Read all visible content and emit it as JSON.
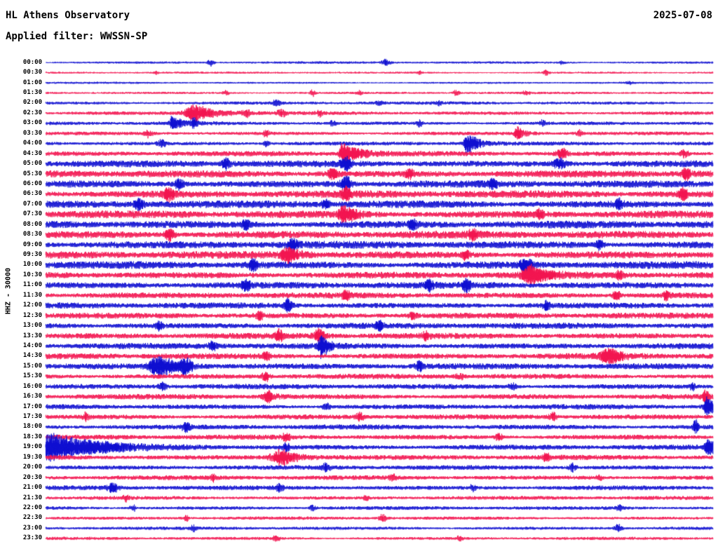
{
  "header": {
    "title": "HL Athens Observatory",
    "date": "2025-07-08",
    "filter_label": "Applied filter: WWSSN-SP"
  },
  "y_axis_label": "HHZ - 30000",
  "chart_data": {
    "type": "line",
    "subtype": "helicorder",
    "title": "HL Athens Observatory",
    "date": "2025-07-08",
    "filter": "WWSSN-SP",
    "channel": "HHZ",
    "scale": 30000,
    "minutes_per_row": 30,
    "legend": "none",
    "grid": false,
    "trace_colors": [
      "#0c0cd0",
      "#f3134f"
    ],
    "label_color": "#000000",
    "rows": [
      {
        "label": "00:00",
        "c": 0,
        "noise": 1.2,
        "ev": [
          {
            "x": 0.247,
            "a": 4,
            "w": 3
          },
          {
            "x": 0.51,
            "a": 4,
            "w": 4
          },
          {
            "x": 0.774,
            "a": 2,
            "w": 3
          }
        ]
      },
      {
        "label": "00:30",
        "c": 1,
        "noise": 1.0,
        "ev": [
          {
            "x": 0.165,
            "a": 2,
            "w": 2
          },
          {
            "x": 0.56,
            "a": 2,
            "w": 2
          },
          {
            "x": 0.75,
            "a": 2.5,
            "w": 3
          }
        ]
      },
      {
        "label": "01:00",
        "c": 0,
        "noise": 1.0,
        "ev": [
          {
            "x": 0.875,
            "a": 2,
            "w": 3
          }
        ]
      },
      {
        "label": "01:30",
        "c": 1,
        "noise": 1.2,
        "ev": [
          {
            "x": 0.27,
            "a": 3,
            "w": 3
          },
          {
            "x": 0.4,
            "a": 3.5,
            "w": 3
          },
          {
            "x": 0.47,
            "a": 2.5,
            "w": 3
          },
          {
            "x": 0.615,
            "a": 3,
            "w": 3
          },
          {
            "x": 0.72,
            "a": 2.5,
            "w": 3
          }
        ]
      },
      {
        "label": "02:00",
        "c": 0,
        "noise": 1.6,
        "ev": [
          {
            "x": 0.345,
            "a": 3.5,
            "w": 4
          },
          {
            "x": 0.5,
            "a": 2.5,
            "w": 3
          },
          {
            "x": 0.59,
            "a": 2.5,
            "w": 3
          }
        ]
      },
      {
        "label": "02:30",
        "c": 1,
        "noise": 1.8,
        "ev": [
          {
            "x": 0.223,
            "a": 9,
            "w": 9,
            "t": 30
          },
          {
            "x": 0.3,
            "a": 4,
            "w": 4
          },
          {
            "x": 0.353,
            "a": 4,
            "w": 4
          },
          {
            "x": 0.41,
            "a": 3,
            "w": 3
          }
        ]
      },
      {
        "label": "03:00",
        "c": 0,
        "noise": 1.8,
        "ev": [
          {
            "x": 0.19,
            "a": 7,
            "w": 3,
            "t": 15
          },
          {
            "x": 0.223,
            "a": 5,
            "w": 3
          },
          {
            "x": 0.43,
            "a": 3,
            "w": 3
          },
          {
            "x": 0.56,
            "a": 3,
            "w": 3
          },
          {
            "x": 0.745,
            "a": 3,
            "w": 3
          }
        ]
      },
      {
        "label": "03:30",
        "c": 1,
        "noise": 1.8,
        "ev": [
          {
            "x": 0.153,
            "a": 4,
            "w": 4
          },
          {
            "x": 0.33,
            "a": 4,
            "w": 3
          },
          {
            "x": 0.707,
            "a": 7,
            "w": 3,
            "t": 10
          },
          {
            "x": 0.8,
            "a": 3,
            "w": 3
          }
        ]
      },
      {
        "label": "04:00",
        "c": 0,
        "noise": 2.0,
        "ev": [
          {
            "x": 0.174,
            "a": 4,
            "w": 4
          },
          {
            "x": 0.33,
            "a": 4,
            "w": 3
          },
          {
            "x": 0.632,
            "a": 14,
            "w": 3,
            "t": 12
          }
        ]
      },
      {
        "label": "04:30",
        "c": 1,
        "noise": 2.6,
        "ev": [
          {
            "x": 0.447,
            "a": 12,
            "w": 4,
            "t": 20
          },
          {
            "x": 0.774,
            "a": 5,
            "w": 5
          },
          {
            "x": 0.958,
            "a": 4,
            "w": 4
          }
        ]
      },
      {
        "label": "05:00",
        "c": 0,
        "noise": 3.4,
        "ev": [
          {
            "x": 0.27,
            "a": 5,
            "w": 5
          },
          {
            "x": 0.45,
            "a": 6,
            "w": 5
          },
          {
            "x": 0.77,
            "a": 5,
            "w": 6
          }
        ]
      },
      {
        "label": "05:30",
        "c": 1,
        "noise": 3.6,
        "ev": [
          {
            "x": 0.43,
            "a": 5,
            "w": 5
          },
          {
            "x": 0.545,
            "a": 4,
            "w": 4
          },
          {
            "x": 0.96,
            "a": 5,
            "w": 4
          }
        ]
      },
      {
        "label": "06:00",
        "c": 0,
        "noise": 3.6,
        "ev": [
          {
            "x": 0.2,
            "a": 5,
            "w": 5
          },
          {
            "x": 0.45,
            "a": 8,
            "w": 5
          },
          {
            "x": 0.67,
            "a": 4,
            "w": 4
          }
        ]
      },
      {
        "label": "06:30",
        "c": 1,
        "noise": 3.8,
        "ev": [
          {
            "x": 0.185,
            "a": 6,
            "w": 5
          },
          {
            "x": 0.45,
            "a": 6,
            "w": 4
          },
          {
            "x": 0.955,
            "a": 6,
            "w": 4
          }
        ]
      },
      {
        "label": "07:00",
        "c": 0,
        "noise": 3.8,
        "ev": [
          {
            "x": 0.14,
            "a": 5,
            "w": 5
          },
          {
            "x": 0.42,
            "a": 5,
            "w": 4
          },
          {
            "x": 0.86,
            "a": 4,
            "w": 4
          }
        ]
      },
      {
        "label": "07:30",
        "c": 1,
        "noise": 3.8,
        "ev": [
          {
            "x": 0.447,
            "a": 8,
            "w": 5,
            "t": 15
          },
          {
            "x": 0.74,
            "a": 4,
            "w": 4
          }
        ]
      },
      {
        "label": "08:00",
        "c": 0,
        "noise": 3.8,
        "ev": [
          {
            "x": 0.3,
            "a": 4,
            "w": 4
          },
          {
            "x": 0.55,
            "a": 4,
            "w": 4
          }
        ]
      },
      {
        "label": "08:30",
        "c": 1,
        "noise": 3.8,
        "ev": [
          {
            "x": 0.185,
            "a": 6,
            "w": 5
          },
          {
            "x": 0.64,
            "a": 4,
            "w": 4
          }
        ]
      },
      {
        "label": "09:00",
        "c": 0,
        "noise": 3.8,
        "ev": [
          {
            "x": 0.37,
            "a": 5,
            "w": 5
          },
          {
            "x": 0.83,
            "a": 4,
            "w": 4
          }
        ]
      },
      {
        "label": "09:30",
        "c": 1,
        "noise": 3.8,
        "ev": [
          {
            "x": 0.363,
            "a": 7,
            "w": 6,
            "t": 15
          },
          {
            "x": 0.63,
            "a": 4,
            "w": 4
          }
        ]
      },
      {
        "label": "10:00",
        "c": 0,
        "noise": 3.8,
        "ev": [
          {
            "x": 0.31,
            "a": 5,
            "w": 5
          },
          {
            "x": 0.72,
            "a": 7,
            "w": 6
          }
        ]
      },
      {
        "label": "10:30",
        "c": 1,
        "noise": 3.4,
        "ev": [
          {
            "x": 0.728,
            "a": 9,
            "w": 8,
            "t": 20
          },
          {
            "x": 0.86,
            "a": 4,
            "w": 4
          }
        ]
      },
      {
        "label": "11:00",
        "c": 0,
        "noise": 3.4,
        "ev": [
          {
            "x": 0.3,
            "a": 5,
            "w": 4
          },
          {
            "x": 0.575,
            "a": 4,
            "w": 4
          },
          {
            "x": 0.63,
            "a": 5,
            "w": 4
          }
        ]
      },
      {
        "label": "11:30",
        "c": 1,
        "noise": 3.0,
        "ev": [
          {
            "x": 0.45,
            "a": 4,
            "w": 4
          },
          {
            "x": 0.855,
            "a": 5,
            "w": 4
          },
          {
            "x": 0.93,
            "a": 4,
            "w": 4
          }
        ]
      },
      {
        "label": "12:00",
        "c": 0,
        "noise": 3.0,
        "ev": [
          {
            "x": 0.363,
            "a": 6,
            "w": 4
          },
          {
            "x": 0.75,
            "a": 4,
            "w": 4
          }
        ]
      },
      {
        "label": "12:30",
        "c": 1,
        "noise": 3.0,
        "ev": [
          {
            "x": 0.32,
            "a": 4,
            "w": 4
          },
          {
            "x": 0.55,
            "a": 3.5,
            "w": 4
          }
        ]
      },
      {
        "label": "13:00",
        "c": 0,
        "noise": 3.0,
        "ev": [
          {
            "x": 0.17,
            "a": 4,
            "w": 4
          },
          {
            "x": 0.5,
            "a": 4,
            "w": 4
          }
        ]
      },
      {
        "label": "13:30",
        "c": 1,
        "noise": 3.0,
        "ev": [
          {
            "x": 0.35,
            "a": 5,
            "w": 4
          },
          {
            "x": 0.41,
            "a": 6,
            "w": 5
          },
          {
            "x": 0.57,
            "a": 4,
            "w": 4
          }
        ]
      },
      {
        "label": "14:00",
        "c": 0,
        "noise": 3.0,
        "ev": [
          {
            "x": 0.413,
            "a": 12,
            "w": 3,
            "t": 10
          },
          {
            "x": 0.25,
            "a": 4,
            "w": 4
          }
        ]
      },
      {
        "label": "14:30",
        "c": 1,
        "noise": 3.0,
        "ev": [
          {
            "x": 0.845,
            "a": 8,
            "w": 8,
            "t": 15
          },
          {
            "x": 0.33,
            "a": 4,
            "w": 4
          }
        ]
      },
      {
        "label": "15:00",
        "c": 0,
        "noise": 3.0,
        "ev": [
          {
            "x": 0.17,
            "a": 10,
            "w": 10,
            "t": 30
          },
          {
            "x": 0.21,
            "a": 7,
            "w": 6
          },
          {
            "x": 0.56,
            "a": 4,
            "w": 4
          }
        ]
      },
      {
        "label": "15:30",
        "c": 1,
        "noise": 2.6,
        "ev": [
          {
            "x": 0.33,
            "a": 5,
            "w": 4
          },
          {
            "x": 0.62,
            "a": 3.5,
            "w": 4
          }
        ]
      },
      {
        "label": "16:00",
        "c": 0,
        "noise": 2.6,
        "ev": [
          {
            "x": 0.175,
            "a": 4,
            "w": 4
          },
          {
            "x": 0.7,
            "a": 3.5,
            "w": 4
          },
          {
            "x": 0.97,
            "a": 4,
            "w": 3
          }
        ]
      },
      {
        "label": "16:30",
        "c": 1,
        "noise": 2.6,
        "ev": [
          {
            "x": 0.332,
            "a": 6,
            "w": 4,
            "t": 10
          },
          {
            "x": 0.989,
            "a": 6,
            "w": 3
          }
        ]
      },
      {
        "label": "17:00",
        "c": 0,
        "noise": 2.5,
        "ev": [
          {
            "x": 0.42,
            "a": 4,
            "w": 4
          },
          {
            "x": 0.992,
            "a": 12,
            "w": 3,
            "t": 8
          }
        ]
      },
      {
        "label": "17:30",
        "c": 1,
        "noise": 2.5,
        "ev": [
          {
            "x": 0.06,
            "a": 3.5,
            "w": 3
          },
          {
            "x": 0.47,
            "a": 4,
            "w": 4
          },
          {
            "x": 0.76,
            "a": 4,
            "w": 4
          }
        ]
      },
      {
        "label": "18:00",
        "c": 0,
        "noise": 2.5,
        "ev": [
          {
            "x": 0.21,
            "a": 4,
            "w": 4
          },
          {
            "x": 0.974,
            "a": 7,
            "w": 3
          }
        ]
      },
      {
        "label": "18:30",
        "c": 1,
        "noise": 2.5,
        "ev": [
          {
            "x": 0.36,
            "a": 4,
            "w": 4
          },
          {
            "x": 0.68,
            "a": 4,
            "w": 4
          }
        ]
      },
      {
        "label": "19:00",
        "c": 0,
        "noise": 2.6,
        "ev": [
          {
            "x": 0.007,
            "a": 16,
            "w": 8,
            "t": 60
          },
          {
            "x": 0.36,
            "a": 4,
            "w": 4
          },
          {
            "x": 0.993,
            "a": 11,
            "w": 3,
            "t": 8
          }
        ]
      },
      {
        "label": "19:30",
        "c": 1,
        "noise": 2.5,
        "ev": [
          {
            "x": 0.353,
            "a": 8,
            "w": 10,
            "t": 25
          },
          {
            "x": 0.75,
            "a": 4,
            "w": 4
          }
        ]
      },
      {
        "label": "20:00",
        "c": 0,
        "noise": 2.3,
        "ev": [
          {
            "x": 0.42,
            "a": 3.5,
            "w": 4
          },
          {
            "x": 0.79,
            "a": 4,
            "w": 4
          }
        ]
      },
      {
        "label": "20:30",
        "c": 1,
        "noise": 2.3,
        "ev": [
          {
            "x": 0.25,
            "a": 3.5,
            "w": 3
          },
          {
            "x": 0.52,
            "a": 3,
            "w": 3
          },
          {
            "x": 0.83,
            "a": 3,
            "w": 3
          }
        ]
      },
      {
        "label": "21:00",
        "c": 0,
        "noise": 2.3,
        "ev": [
          {
            "x": 0.1,
            "a": 5,
            "w": 5
          },
          {
            "x": 0.35,
            "a": 3.5,
            "w": 4
          },
          {
            "x": 0.64,
            "a": 3,
            "w": 3
          }
        ]
      },
      {
        "label": "21:30",
        "c": 1,
        "noise": 1.9,
        "ev": [
          {
            "x": 0.12,
            "a": 3,
            "w": 3
          },
          {
            "x": 0.48,
            "a": 3,
            "w": 3
          }
        ]
      },
      {
        "label": "22:00",
        "c": 0,
        "noise": 1.8,
        "ev": [
          {
            "x": 0.13,
            "a": 3.5,
            "w": 3
          },
          {
            "x": 0.4,
            "a": 3,
            "w": 3
          },
          {
            "x": 0.86,
            "a": 3,
            "w": 3
          }
        ]
      },
      {
        "label": "22:30",
        "c": 1,
        "noise": 1.6,
        "ev": [
          {
            "x": 0.21,
            "a": 3,
            "w": 3
          },
          {
            "x": 0.505,
            "a": 4,
            "w": 4
          }
        ]
      },
      {
        "label": "23:00",
        "c": 0,
        "noise": 1.6,
        "ev": [
          {
            "x": 0.22,
            "a": 3,
            "w": 3
          },
          {
            "x": 0.858,
            "a": 4,
            "w": 4
          }
        ]
      },
      {
        "label": "23:30",
        "c": 1,
        "noise": 1.5,
        "ev": [
          {
            "x": 0.345,
            "a": 3,
            "w": 4
          },
          {
            "x": 0.62,
            "a": 2.5,
            "w": 3
          }
        ]
      }
    ]
  }
}
